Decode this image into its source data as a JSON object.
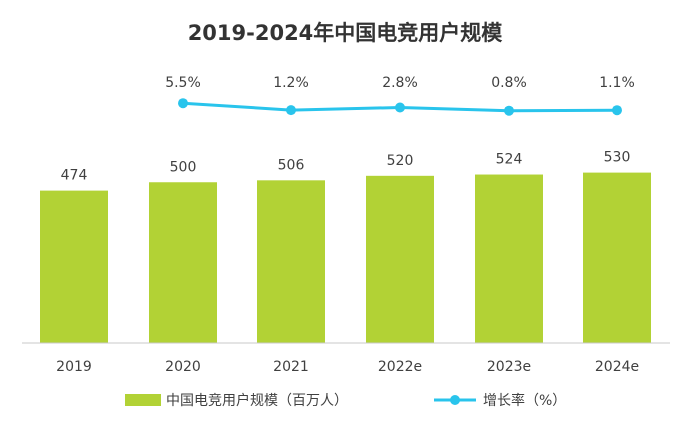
{
  "chart_data": {
    "type": "bar",
    "title": "2019-2024年中国电竞用户规模",
    "categories": [
      "2019",
      "2020",
      "2021",
      "2022e",
      "2023e",
      "2024e"
    ],
    "series": [
      {
        "name": "中国电竞用户规模（百万人）",
        "type": "bar",
        "values": [
          474,
          500,
          506,
          520,
          524,
          530
        ],
        "labels": [
          "474",
          "500",
          "506",
          "520",
          "524",
          "530"
        ],
        "color": "#b2d235"
      },
      {
        "name": "增长率（%）",
        "type": "line",
        "values": [
          null,
          5.5,
          1.2,
          2.8,
          0.8,
          1.1
        ],
        "labels": [
          "",
          "5.5%",
          "1.2%",
          "2.8%",
          "0.8%",
          "1.1%"
        ],
        "color": "#29c4ec"
      }
    ],
    "ylim": [
      0,
      1000
    ],
    "grid": false,
    "legend": "bottom"
  }
}
